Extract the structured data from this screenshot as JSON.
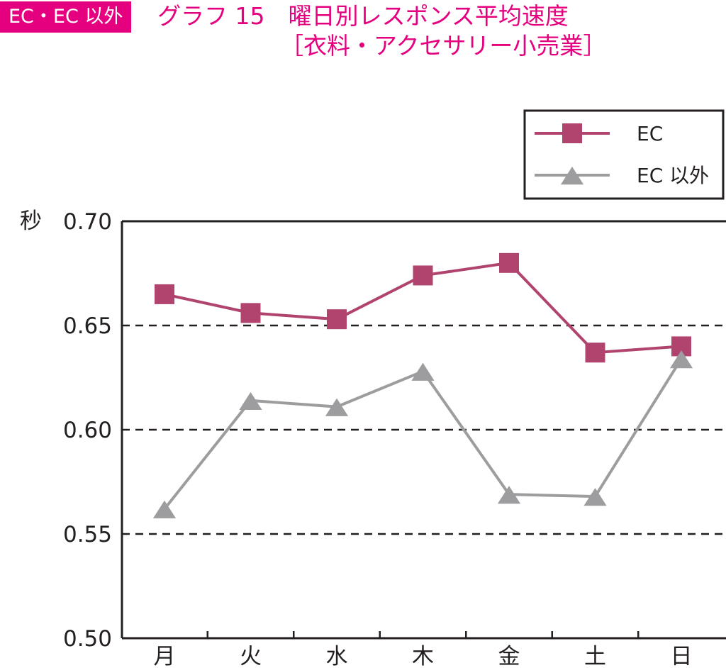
{
  "header": {
    "tag": "EC・EC 以外",
    "title_line1": "グラフ 15　曜日別レスポンス平均速度",
    "title_line2": "［衣料・アクセサリー小売業］"
  },
  "colors": {
    "accent": "#e5007f",
    "ec": "#b0446f",
    "non_ec": "#9d9d9f",
    "axis": "#231f20"
  },
  "chart_data": {
    "type": "line",
    "title": "グラフ 15　曜日別レスポンス平均速度［衣料・アクセサリー小売業］",
    "ylabel": "秒",
    "xlabel": "",
    "ylim": [
      0.5,
      0.7
    ],
    "yticks": [
      "0.50",
      "0.55",
      "0.60",
      "0.65",
      "0.70"
    ],
    "grid": "dashed horizontal at 0.55, 0.60, 0.65",
    "legend_position": "top-right",
    "categories": [
      "月",
      "火",
      "水",
      "木",
      "金",
      "土",
      "日"
    ],
    "series": [
      {
        "name": "EC",
        "marker": "square",
        "color": "#b0446f",
        "values": [
          0.665,
          0.656,
          0.653,
          0.674,
          0.68,
          0.637,
          0.64
        ]
      },
      {
        "name": "EC 以外",
        "marker": "triangle",
        "color": "#9d9d9f",
        "values": [
          0.562,
          0.614,
          0.611,
          0.628,
          0.569,
          0.568,
          0.634
        ]
      }
    ]
  }
}
